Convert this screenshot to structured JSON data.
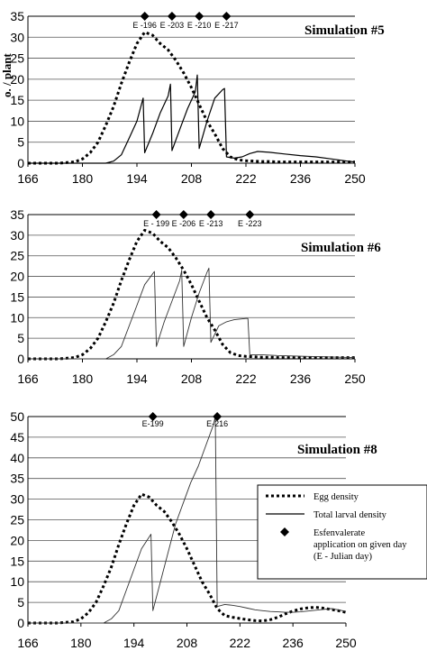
{
  "chart_data": [
    {
      "type": "line",
      "title": "Simulation #5",
      "ylabel_fragment": "o. / plant",
      "xlim": [
        166,
        250
      ],
      "ylim": [
        0,
        35
      ],
      "x_ticks": [
        166,
        180,
        194,
        208,
        222,
        236,
        250
      ],
      "y_ticks": [
        0,
        5,
        10,
        15,
        20,
        25,
        30,
        35
      ],
      "grid": "horizontal",
      "applications": [
        {
          "day": 196,
          "label": "E -196"
        },
        {
          "day": 203,
          "label": "E -203"
        },
        {
          "day": 210,
          "label": "E -210"
        },
        {
          "day": 217,
          "label": "E -217"
        }
      ],
      "series": [
        {
          "style": "dotted",
          "x": [
            166,
            170,
            174,
            178,
            180,
            182,
            184,
            186,
            188,
            190,
            192,
            194,
            196,
            198,
            200,
            202,
            204,
            206,
            208,
            210,
            212,
            214,
            216,
            218,
            220,
            222,
            224,
            226,
            228,
            230,
            232,
            234,
            236,
            240,
            244,
            248,
            250
          ],
          "y": [
            0,
            0,
            0,
            0.3,
            1,
            2.5,
            5,
            9,
            13.5,
            19,
            24,
            28.5,
            31.2,
            30.5,
            28.5,
            27,
            24.5,
            21.5,
            18,
            14,
            10,
            7,
            3.5,
            1.5,
            0.8,
            0.6,
            0.5,
            0.4,
            0.4,
            0.3,
            0.3,
            0.3,
            0.3,
            0.3,
            0.3,
            0.3,
            0.3
          ]
        },
        {
          "style": "solid",
          "x": [
            166,
            184,
            186,
            188,
            190,
            192,
            194,
            195.6,
            196,
            198,
            200,
            202,
            202.6,
            203,
            205,
            207,
            209,
            209.5,
            210,
            212,
            214,
            216,
            216.5,
            217,
            219,
            221,
            223,
            225,
            228,
            232,
            236,
            240,
            244,
            248,
            250
          ],
          "y": [
            0,
            0,
            0,
            0.5,
            2,
            6,
            10,
            15.5,
            2.5,
            7,
            12,
            16,
            18.8,
            3,
            8,
            13,
            17,
            21,
            3.5,
            10,
            15.5,
            17.5,
            17.8,
            1.5,
            1.2,
            1.5,
            2.3,
            2.8,
            2.6,
            2.2,
            1.8,
            1.5,
            1,
            0.5,
            0.3
          ]
        }
      ]
    },
    {
      "type": "line",
      "title": "Simulation #6",
      "xlim": [
        166,
        250
      ],
      "ylim": [
        0,
        35
      ],
      "x_ticks": [
        166,
        180,
        194,
        208,
        222,
        236,
        250
      ],
      "y_ticks": [
        0,
        5,
        10,
        15,
        20,
        25,
        30,
        35
      ],
      "grid": "horizontal",
      "applications": [
        {
          "day": 199,
          "label": "E - 199"
        },
        {
          "day": 206,
          "label": "E -206"
        },
        {
          "day": 213,
          "label": "E -213"
        },
        {
          "day": 223,
          "label": "E -223"
        }
      ],
      "series": [
        {
          "style": "dotted",
          "x": [
            166,
            170,
            174,
            178,
            180,
            182,
            184,
            186,
            188,
            190,
            192,
            194,
            196,
            198,
            200,
            202,
            204,
            206,
            208,
            210,
            212,
            214,
            216,
            218,
            220,
            222,
            224,
            226,
            228,
            230,
            232,
            234,
            236,
            240,
            244,
            248,
            250
          ],
          "y": [
            0,
            0,
            0,
            0.3,
            1,
            2.5,
            5,
            9,
            13.5,
            19,
            24,
            28.5,
            31.2,
            30.5,
            28.5,
            27,
            24.5,
            21.5,
            18,
            14,
            10,
            7,
            3.5,
            1.5,
            0.8,
            0.6,
            0.5,
            0.4,
            0.4,
            0.3,
            0.3,
            0.3,
            0.3,
            0.3,
            0.3,
            0.3,
            0.3
          ]
        },
        {
          "style": "solid",
          "x": [
            166,
            184,
            186,
            188,
            190,
            192,
            194,
            196,
            198.5,
            199,
            201,
            203,
            205,
            205.5,
            206,
            208,
            210,
            212,
            212.5,
            213,
            215,
            217,
            219,
            222,
            222.5,
            223,
            226,
            230,
            234,
            238,
            242,
            246,
            250
          ],
          "y": [
            0,
            0,
            0,
            1,
            3,
            8,
            13,
            18,
            21.2,
            3,
            9,
            14,
            19,
            21.5,
            3,
            10,
            16,
            21,
            22,
            4,
            8,
            9,
            9.5,
            9.8,
            9.8,
            1,
            1,
            0.8,
            0.7,
            0.6,
            0.5,
            0.4,
            0.3
          ]
        }
      ]
    },
    {
      "type": "line",
      "title": "Simulation #8",
      "xlim": [
        166,
        250
      ],
      "ylim": [
        0,
        50
      ],
      "x_ticks": [
        166,
        180,
        194,
        208,
        222,
        236,
        250
      ],
      "y_ticks": [
        0,
        5,
        10,
        15,
        20,
        25,
        30,
        35,
        40,
        45,
        50
      ],
      "grid": "horizontal",
      "applications": [
        {
          "day": 199,
          "label": "E-199"
        },
        {
          "day": 216,
          "label": "E-216"
        }
      ],
      "legend": {
        "position": "right",
        "entries": [
          {
            "label": "Egg density",
            "style": "dotted"
          },
          {
            "label": "Total larval density",
            "style": "solid"
          },
          {
            "label_lines": [
              "Esfenvalerate",
              "application on given day",
              "(E - Julian day)"
            ],
            "style": "diamond"
          }
        ]
      },
      "series": [
        {
          "style": "dotted",
          "x": [
            166,
            170,
            174,
            178,
            180,
            182,
            184,
            186,
            188,
            190,
            192,
            194,
            196,
            198,
            200,
            202,
            204,
            206,
            208,
            210,
            212,
            214,
            216,
            218,
            220,
            222,
            224,
            226,
            228,
            230,
            232,
            234,
            236,
            238,
            240,
            242,
            244,
            246,
            248,
            250
          ],
          "y": [
            0,
            0,
            0,
            0.3,
            1,
            2.5,
            5,
            9,
            13.5,
            19,
            24,
            28.5,
            31.2,
            30.5,
            28.5,
            27,
            24.5,
            21.5,
            18,
            14,
            10,
            7,
            3.5,
            1.8,
            1.4,
            1.1,
            0.8,
            0.6,
            0.5,
            0.8,
            1.4,
            2.2,
            2.9,
            3.4,
            3.7,
            3.8,
            3.6,
            3.3,
            3,
            2.6
          ]
        },
        {
          "style": "solid",
          "x": [
            166,
            184,
            186,
            188,
            190,
            192,
            194,
            196,
            198.5,
            199,
            201,
            203,
            205,
            207,
            209,
            211,
            213,
            215,
            215.5,
            216,
            218,
            220,
            222,
            224,
            226,
            228,
            230,
            232,
            234,
            236,
            238,
            240,
            242,
            244,
            246,
            248,
            250
          ],
          "y": [
            0,
            0,
            0,
            1,
            3,
            8,
            13,
            18,
            21.5,
            3,
            10,
            17,
            24,
            29,
            34,
            38,
            43,
            48,
            50,
            4,
            4.5,
            4.3,
            4,
            3.6,
            3.2,
            3,
            2.8,
            2.7,
            2.6,
            2.6,
            2.7,
            2.9,
            3.1,
            3.3,
            3.5,
            3.2,
            2.8
          ]
        }
      ]
    }
  ]
}
